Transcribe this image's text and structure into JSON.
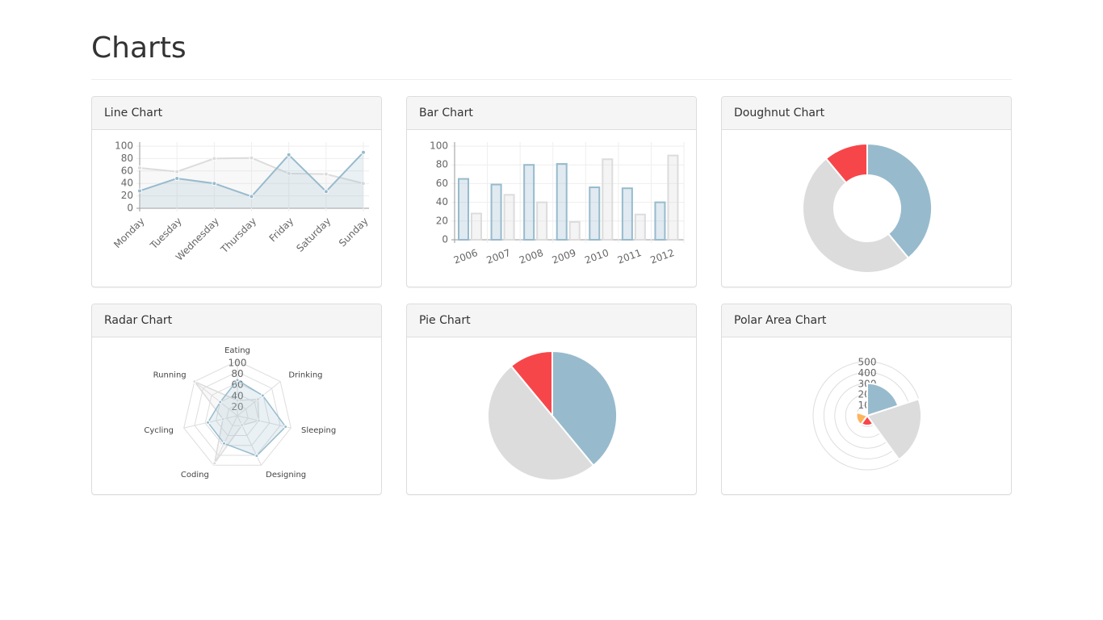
{
  "header": {
    "title": "Charts"
  },
  "chart_data": [
    {
      "type": "line",
      "title": "Line Chart",
      "categories": [
        "Monday",
        "Tuesday",
        "Wednesday",
        "Thursday",
        "Friday",
        "Saturday",
        "Sunday"
      ],
      "series": [
        {
          "color": "#dcdcdc",
          "values": [
            65,
            59,
            80,
            81,
            56,
            55,
            40
          ]
        },
        {
          "color": "#97bbcd",
          "values": [
            28,
            48,
            40,
            19,
            86,
            27,
            90
          ]
        }
      ],
      "ylim": [
        0,
        100
      ],
      "yticks": [
        0,
        20,
        40,
        60,
        80,
        100
      ],
      "grid": true
    },
    {
      "type": "bar",
      "title": "Bar Chart",
      "categories": [
        "2006",
        "2007",
        "2008",
        "2009",
        "2010",
        "2011",
        "2012"
      ],
      "series": [
        {
          "color": "#97bbcd",
          "values": [
            65,
            59,
            80,
            81,
            56,
            55,
            40
          ]
        },
        {
          "color": "#dcdcdc",
          "values": [
            28,
            48,
            40,
            19,
            86,
            27,
            90
          ]
        }
      ],
      "ylim": [
        0,
        100
      ],
      "yticks": [
        0,
        20,
        40,
        60,
        80,
        100
      ],
      "grid": true
    },
    {
      "type": "doughnut",
      "title": "Doughnut Chart",
      "values": [
        39,
        50,
        11
      ],
      "colors": [
        "#97bbcd",
        "#dcdcdc",
        "#f7464a"
      ]
    },
    {
      "type": "radar",
      "title": "Radar Chart",
      "categories": [
        "Eating",
        "Drinking",
        "Sleeping",
        "Designing",
        "Coding",
        "Cycling",
        "Running"
      ],
      "series": [
        {
          "color": "#dcdcdc",
          "values": [
            28,
            48,
            40,
            19,
            96,
            27,
            100
          ]
        },
        {
          "color": "#97bbcd",
          "values": [
            65,
            59,
            90,
            81,
            56,
            55,
            40
          ]
        }
      ],
      "ylim": [
        0,
        100
      ],
      "yticks": [
        20,
        40,
        60,
        80,
        100
      ]
    },
    {
      "type": "pie",
      "title": "Pie Chart",
      "values": [
        39,
        50,
        11
      ],
      "colors": [
        "#97bbcd",
        "#dcdcdc",
        "#f7464a"
      ]
    },
    {
      "type": "polar",
      "title": "Polar Area Chart",
      "values": [
        300,
        500,
        90,
        100,
        10
      ],
      "colors": [
        "#97bbcd",
        "#dcdcdc",
        "#f7464a",
        "#fdb45c",
        "#4d5360"
      ],
      "ylim": [
        0,
        500
      ],
      "yticks": [
        100,
        200,
        300,
        400,
        500
      ]
    }
  ]
}
